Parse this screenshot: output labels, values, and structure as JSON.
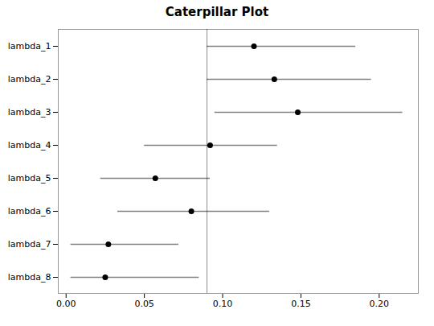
{
  "chart_data": {
    "type": "caterpillar",
    "title": "Caterpillar Plot",
    "categories": [
      "lambda_1",
      "lambda_2",
      "lambda_3",
      "lambda_4",
      "lambda_5",
      "lambda_6",
      "lambda_7",
      "lambda_8"
    ],
    "values": [
      0.12,
      0.133,
      0.148,
      0.092,
      0.057,
      0.08,
      0.027,
      0.025
    ],
    "ci_low": [
      0.09,
      0.09,
      0.095,
      0.05,
      0.022,
      0.033,
      0.003,
      0.003
    ],
    "ci_high": [
      0.185,
      0.195,
      0.215,
      0.135,
      0.092,
      0.13,
      0.072,
      0.085
    ],
    "reference_line": 0.09,
    "xlim": [
      -0.005,
      0.225
    ],
    "xticks": [
      {
        "value": 0,
        "label": "0.00"
      },
      0.05,
      {
        "value": 0.1,
        "label": "0.10"
      },
      0.15,
      {
        "value": 0.2,
        "label": "0.20"
      }
    ],
    "grid": false
  }
}
